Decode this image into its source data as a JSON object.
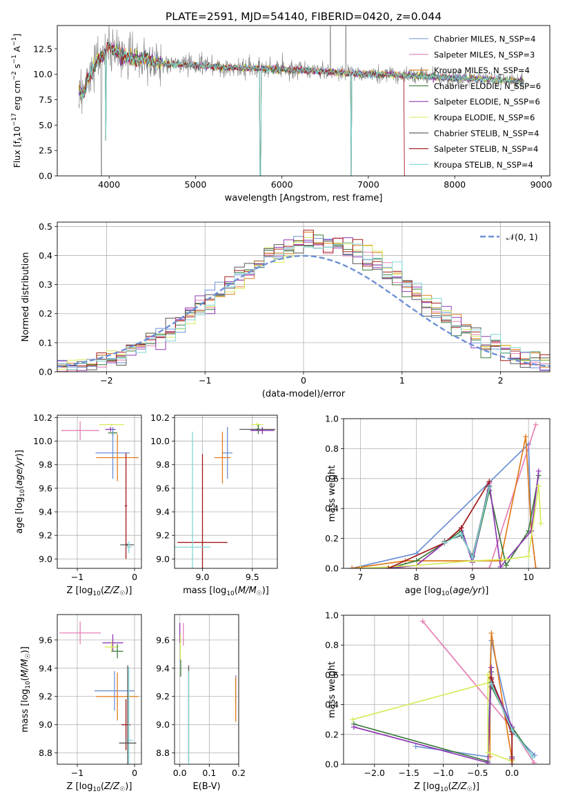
{
  "title": "PLATE=2591, MJD=54140, FIBERID=0420, z=0.044",
  "colors": {
    "chabrier_miles": "#6b8fd6",
    "salpeter_miles": "#e67fb5",
    "kroupa_miles": "#e07b1a",
    "chabrier_elodie": "#3a7a3a",
    "salpeter_elodie": "#8e36b3",
    "kroupa_elodie": "#d7ea5a",
    "chabrier_stelib": "#555555",
    "salpeter_stelib": "#a01818",
    "kroupa_stelib": "#7fd6d6",
    "data": "#888888",
    "normal": "#6b8fd6"
  },
  "chart_data": [
    {
      "id": "spectrum",
      "type": "line",
      "xlabel": "wavelength [Angstrom, rest frame]",
      "ylabel": "Flux [f_λ 10^-17 erg cm^-2 s^-1 A^-1]",
      "xlim": [
        3400,
        9100
      ],
      "ylim": [
        0,
        14.8
      ],
      "xticks": [
        4000,
        5000,
        6000,
        7000,
        8000,
        9000
      ],
      "yticks": [
        0.0,
        2.5,
        5.0,
        7.5,
        10.0,
        12.5
      ],
      "grid": false,
      "legend_position": "right",
      "legend": [
        {
          "label": "Chabrier MILES, N_SSP=4",
          "color_key": "chabrier_miles"
        },
        {
          "label": "Salpeter MILES, N_SSP=3",
          "color_key": "salpeter_miles"
        },
        {
          "label": "Kroupa MILES, N_SSP=4",
          "color_key": "kroupa_miles"
        },
        {
          "label": "Chabrier ELODIE, N_SSP=6",
          "color_key": "chabrier_elodie"
        },
        {
          "label": "Salpeter ELODIE, N_SSP=6",
          "color_key": "salpeter_elodie"
        },
        {
          "label": "Kroupa ELODIE, N_SSP=6",
          "color_key": "kroupa_elodie"
        },
        {
          "label": "Chabrier STELIB, N_SSP=4",
          "color_key": "chabrier_stelib"
        },
        {
          "label": "Salpeter STELIB, N_SSP=4",
          "color_key": "salpeter_stelib"
        },
        {
          "label": "Kroupa STELIB, N_SSP=4",
          "color_key": "kroupa_stelib"
        }
      ],
      "continuum": {
        "x": [
          3650,
          3700,
          3750,
          3800,
          3850,
          3900,
          3950,
          4000,
          4100,
          4200,
          4300,
          4400,
          4500,
          4700,
          5000,
          5300,
          5600,
          6000,
          6400,
          6800,
          7000,
          7200,
          7400,
          7600,
          8000,
          8400,
          8800
        ],
        "y": [
          8.4,
          7.9,
          9.5,
          10.2,
          11.3,
          11.6,
          12.0,
          12.8,
          12.1,
          11.8,
          11.5,
          11.6,
          11.2,
          11.0,
          10.9,
          10.7,
          10.6,
          10.5,
          10.3,
          10.1,
          10.0,
          10.0,
          9.9,
          9.8,
          9.6,
          9.5,
          9.3
        ]
      },
      "data_dips": [
        {
          "x": 3910,
          "y": 0.0
        },
        {
          "x": 3960,
          "y": 3.5
        },
        {
          "x": 5750,
          "y": 0.0
        },
        {
          "x": 6800,
          "y": 0.0
        }
      ],
      "data_spikes": [
        {
          "x": 6560,
          "y": 14.8
        },
        {
          "x": 6740,
          "y": 14.8
        }
      ],
      "model_dropouts": [
        {
          "x": 3960,
          "y": 3.5
        },
        {
          "x": 5750,
          "y": 0.0
        },
        {
          "x": 6800,
          "y": 0.0
        }
      ],
      "salpeter_stelib_cutoff": {
        "x": 7420,
        "y": 0.0
      }
    },
    {
      "id": "residuals",
      "type": "histogram",
      "xlabel": "(data-model)/error",
      "ylabel": "Normed distribution",
      "xlim": [
        -2.5,
        2.5
      ],
      "ylim": [
        0,
        0.515
      ],
      "xticks": [
        -2,
        -1,
        0,
        1,
        2
      ],
      "yticks": [
        0.0,
        0.1,
        0.2,
        0.3,
        0.4,
        0.5
      ],
      "grid": true,
      "legend_position": "top-right",
      "legend": [
        {
          "label": "𝒩(0, 1)",
          "color_key": "normal"
        }
      ],
      "bin_width": 0.1
    },
    {
      "id": "age_vs_Z",
      "type": "errorbar",
      "xlabel": "Z [log10(Z/Z☉)]",
      "ylabel": "age  [log10(age/yr)]",
      "xlim": [
        -1.35,
        0.12
      ],
      "ylim": [
        8.92,
        10.22
      ],
      "xticks": [
        -1,
        0
      ],
      "yticks": [
        9.0,
        9.2,
        9.4,
        9.6,
        9.8,
        10.0,
        10.2
      ],
      "grid": true,
      "points": [
        {
          "model": "salpeter_miles",
          "x": -0.95,
          "y": 10.09,
          "xerr": 0.33,
          "yerr": 0.08
        },
        {
          "model": "kroupa_elodie",
          "x": -0.4,
          "y": 10.14,
          "xerr": 0.22,
          "yerr": 0.01
        },
        {
          "model": "salpeter_elodie",
          "x": -0.42,
          "y": 10.1,
          "xerr": 0.09,
          "yerr": 0.02
        },
        {
          "model": "chabrier_elodie",
          "x": -0.38,
          "y": 10.07,
          "xerr": 0.08,
          "yerr": 0.03
        },
        {
          "model": "chabrier_miles",
          "x": -0.38,
          "y": 9.9,
          "xerr": 0.3,
          "yerr": 0.22
        },
        {
          "model": "kroupa_miles",
          "x": -0.3,
          "y": 9.86,
          "xerr": 0.37,
          "yerr": 0.2
        },
        {
          "model": "salpeter_stelib",
          "x": -0.15,
          "y": 9.45,
          "xerr": 0.02,
          "yerr": 0.45
        },
        {
          "model": "chabrier_stelib",
          "x": -0.13,
          "y": 9.12,
          "xerr": 0.12,
          "yerr": 0.01
        },
        {
          "model": "kroupa_stelib",
          "x": -0.1,
          "y": 9.1,
          "xerr": 0.05,
          "yerr": 0.05
        }
      ]
    },
    {
      "id": "age_vs_mass",
      "type": "errorbar",
      "xlabel": "mass [log10(M/M☉)]",
      "ylabel": "",
      "xlim": [
        8.72,
        9.75
      ],
      "ylim": [
        8.92,
        10.22
      ],
      "xticks": [
        9.0,
        9.5
      ],
      "yticks": [
        9.0,
        9.2,
        9.4,
        9.6,
        9.8,
        10.0,
        10.2
      ],
      "grid": true,
      "points": [
        {
          "model": "kroupa_elodie",
          "x": 9.55,
          "y": 10.14,
          "xerr": 0.06,
          "yerr": 0.02
        },
        {
          "model": "chabrier_elodie",
          "x": 9.56,
          "y": 10.1,
          "xerr": 0.05,
          "yerr": 0.04
        },
        {
          "model": "salpeter_elodie",
          "x": 9.6,
          "y": 10.09,
          "xerr": 0.12,
          "yerr": 0.03
        },
        {
          "model": "chabrier_stelib",
          "x": 9.55,
          "y": 10.1,
          "xerr": 0.18,
          "yerr": 0.01
        },
        {
          "model": "chabrier_miles",
          "x": 9.25,
          "y": 9.9,
          "xerr": 0.05,
          "yerr": 0.22
        },
        {
          "model": "kroupa_miles",
          "x": 9.2,
          "y": 9.86,
          "xerr": 0.08,
          "yerr": 0.22
        },
        {
          "model": "salpeter_stelib",
          "x": 9.0,
          "y": 9.14,
          "xerr": 0.25,
          "yerr": 0.75
        },
        {
          "model": "kroupa_stelib",
          "x": 8.9,
          "y": 9.1,
          "xerr": 0.18,
          "yerr": 0.98
        }
      ]
    },
    {
      "id": "weight_vs_age",
      "type": "line",
      "xlabel": "age  [log10(age/yr)]",
      "ylabel": "mass weight",
      "xlim": [
        6.7,
        10.38
      ],
      "ylim": [
        0,
        1.0
      ],
      "xticks": [
        7,
        8,
        9,
        10
      ],
      "yticks": [
        0.0,
        0.2,
        0.4,
        0.6,
        0.8,
        1.0
      ],
      "grid": true,
      "series": [
        {
          "model": "chabrier_miles",
          "x": [
            6.85,
            8.0,
            10.0,
            10.05,
            10.13
          ],
          "y": [
            0.0,
            0.1,
            0.83,
            0.25,
            0.0
          ]
        },
        {
          "model": "salpeter_miles",
          "x": [
            6.85,
            9.3,
            10.13
          ],
          "y": [
            0.0,
            0.0,
            0.96
          ]
        },
        {
          "model": "kroupa_miles",
          "x": [
            6.85,
            7.8,
            9.5,
            9.95,
            10.05,
            10.13
          ],
          "y": [
            0.0,
            0.05,
            0.05,
            0.88,
            0.25,
            0.0
          ]
        },
        {
          "model": "chabrier_elodie",
          "x": [
            7.5,
            8.0,
            8.5,
            8.8,
            9.0,
            9.3,
            9.6,
            10.0,
            10.18
          ],
          "y": [
            0.0,
            0.05,
            0.17,
            0.25,
            0.05,
            0.52,
            0.02,
            0.25,
            0.62
          ]
        },
        {
          "model": "salpeter_elodie",
          "x": [
            7.5,
            8.0,
            8.5,
            8.8,
            9.0,
            9.3,
            9.5,
            10.05,
            10.18
          ],
          "y": [
            0.0,
            0.02,
            0.17,
            0.27,
            0.04,
            0.57,
            0.01,
            0.25,
            0.65
          ]
        },
        {
          "model": "kroupa_elodie",
          "x": [
            7.0,
            8.0,
            9.0,
            9.6,
            10.0,
            10.18,
            10.22
          ],
          "y": [
            0.0,
            0.02,
            0.05,
            0.06,
            0.08,
            0.55,
            0.3
          ]
        },
        {
          "model": "chabrier_stelib",
          "x": [
            8.5,
            8.8,
            9.0,
            9.3
          ],
          "y": [
            0.18,
            0.22,
            0.08,
            0.55
          ]
        },
        {
          "model": "salpeter_stelib",
          "x": [
            7.5,
            8.5,
            8.8,
            9.3
          ],
          "y": [
            0.0,
            0.17,
            0.27,
            0.58
          ]
        },
        {
          "model": "kroupa_stelib",
          "x": [
            8.5,
            8.8,
            9.0,
            9.3
          ],
          "y": [
            0.17,
            0.23,
            0.07,
            0.54
          ]
        }
      ]
    },
    {
      "id": "mass_vs_Z",
      "type": "errorbar",
      "xlabel": "Z [log10(Z/Z☉)]",
      "ylabel": "mass [log10(M/M☉)]",
      "xlim": [
        -1.35,
        0.12
      ],
      "ylim": [
        8.72,
        9.78
      ],
      "xticks": [
        -1,
        0
      ],
      "yticks": [
        8.8,
        9.0,
        9.2,
        9.4,
        9.6
      ],
      "grid": true,
      "points": [
        {
          "model": "salpeter_miles",
          "x": -0.95,
          "y": 9.65,
          "xerr": 0.36,
          "yerr": 0.08
        },
        {
          "model": "salpeter_elodie",
          "x": -0.38,
          "y": 9.58,
          "xerr": 0.18,
          "yerr": 0.06
        },
        {
          "model": "kroupa_elodie",
          "x": -0.4,
          "y": 9.55,
          "xerr": 0.12,
          "yerr": 0.04
        },
        {
          "model": "chabrier_elodie",
          "x": -0.3,
          "y": 9.52,
          "xerr": 0.1,
          "yerr": 0.05
        },
        {
          "model": "chabrier_miles",
          "x": -0.35,
          "y": 9.24,
          "xerr": 0.35,
          "yerr": 0.14
        },
        {
          "model": "kroupa_miles",
          "x": -0.3,
          "y": 9.2,
          "xerr": 0.37,
          "yerr": 0.17
        },
        {
          "model": "salpeter_stelib",
          "x": -0.15,
          "y": 9.0,
          "xerr": 0.08,
          "yerr": 0.18
        },
        {
          "model": "kroupa_stelib",
          "x": -0.1,
          "y": 8.89,
          "xerr": 0.07,
          "yerr": 0.52
        },
        {
          "model": "chabrier_stelib",
          "x": -0.12,
          "y": 8.87,
          "xerr": 0.15,
          "yerr": 0.55
        }
      ]
    },
    {
      "id": "mass_vs_ebv",
      "type": "errorbar",
      "xlabel": "E(B-V)",
      "ylabel": "",
      "xlim": [
        -0.018,
        0.2
      ],
      "ylim": [
        8.72,
        9.78
      ],
      "xticks": [
        0.0,
        0.1,
        0.2
      ],
      "yticks": [
        8.8,
        9.0,
        9.2,
        9.4,
        9.6
      ],
      "grid": true,
      "points": [
        {
          "model": "salpeter_elodie",
          "x": 0.0,
          "y": 9.65,
          "xerr": 0.0,
          "yerr": 0.07
        },
        {
          "model": "salpeter_miles",
          "x": 0.012,
          "y": 9.64,
          "xerr": 0.0,
          "yerr": 0.08
        },
        {
          "model": "kroupa_elodie",
          "x": 0.002,
          "y": 9.55,
          "xerr": 0.0,
          "yerr": 0.09
        },
        {
          "model": "chabrier_elodie",
          "x": 0.003,
          "y": 9.4,
          "xerr": 0.0,
          "yerr": 0.06
        },
        {
          "model": "chabrier_stelib",
          "x": 0.03,
          "y": 9.08,
          "xerr": 0.0,
          "yerr": 0.34
        },
        {
          "model": "kroupa_stelib",
          "x": 0.03,
          "y": 9.05,
          "xerr": 0.0,
          "yerr": 0.33
        },
        {
          "model": "chabrier_miles",
          "x": 0.19,
          "y": 9.25,
          "xerr": 0.0,
          "yerr": 0.1
        },
        {
          "model": "kroupa_miles",
          "x": 0.19,
          "y": 9.18,
          "xerr": 0.0,
          "yerr": 0.16
        }
      ]
    },
    {
      "id": "weight_vs_Z",
      "type": "line",
      "xlabel": "Z [log10(Z/Z☉)]",
      "ylabel": "mass weight",
      "xlim": [
        -2.45,
        0.55
      ],
      "ylim": [
        0,
        1.0
      ],
      "xticks": [
        -2.0,
        -1.5,
        -1.0,
        -0.5,
        0.0
      ],
      "yticks": [
        0.0,
        0.2,
        0.4,
        0.6,
        0.8,
        1.0
      ],
      "grid": true,
      "series": [
        {
          "model": "chabrier_miles",
          "x": [
            -1.4,
            -0.35,
            -0.3,
            0.0,
            0.33
          ],
          "y": [
            0.12,
            0.05,
            0.83,
            0.22,
            0.06
          ]
        },
        {
          "model": "salpeter_miles",
          "x": [
            -1.3,
            0.0,
            0.32
          ],
          "y": [
            0.96,
            0.24,
            0.01
          ]
        },
        {
          "model": "kroupa_miles",
          "x": [
            -0.32,
            -0.32,
            -0.3,
            0.0
          ],
          "y": [
            0.05,
            0.6,
            0.88,
            0.03
          ]
        },
        {
          "model": "chabrier_elodie",
          "x": [
            -2.3,
            -0.35,
            -0.3,
            -0.3,
            0.0,
            0.3
          ],
          "y": [
            0.27,
            0.02,
            0.62,
            0.52,
            0.25,
            0.05
          ]
        },
        {
          "model": "salpeter_elodie",
          "x": [
            -2.3,
            -0.35,
            -0.3,
            -0.3,
            0.0,
            0.0
          ],
          "y": [
            0.25,
            0.01,
            0.65,
            0.57,
            0.25,
            0.04
          ]
        },
        {
          "model": "kroupa_elodie",
          "x": [
            -2.32,
            -0.32,
            -0.35,
            -0.35,
            0.0,
            0.0
          ],
          "y": [
            0.3,
            0.55,
            0.6,
            0.08,
            0.02,
            0.0
          ]
        },
        {
          "model": "chabrier_stelib",
          "x": [
            -0.3,
            0.0,
            0.0
          ],
          "y": [
            0.55,
            0.22,
            0.05
          ]
        },
        {
          "model": "salpeter_stelib",
          "x": [
            -0.3,
            0.0,
            0.0
          ],
          "y": [
            0.58,
            0.2,
            0.0
          ]
        },
        {
          "model": "kroupa_stelib",
          "x": [
            -0.3,
            0.0,
            0.3
          ],
          "y": [
            0.54,
            0.23,
            0.05
          ]
        }
      ]
    }
  ]
}
